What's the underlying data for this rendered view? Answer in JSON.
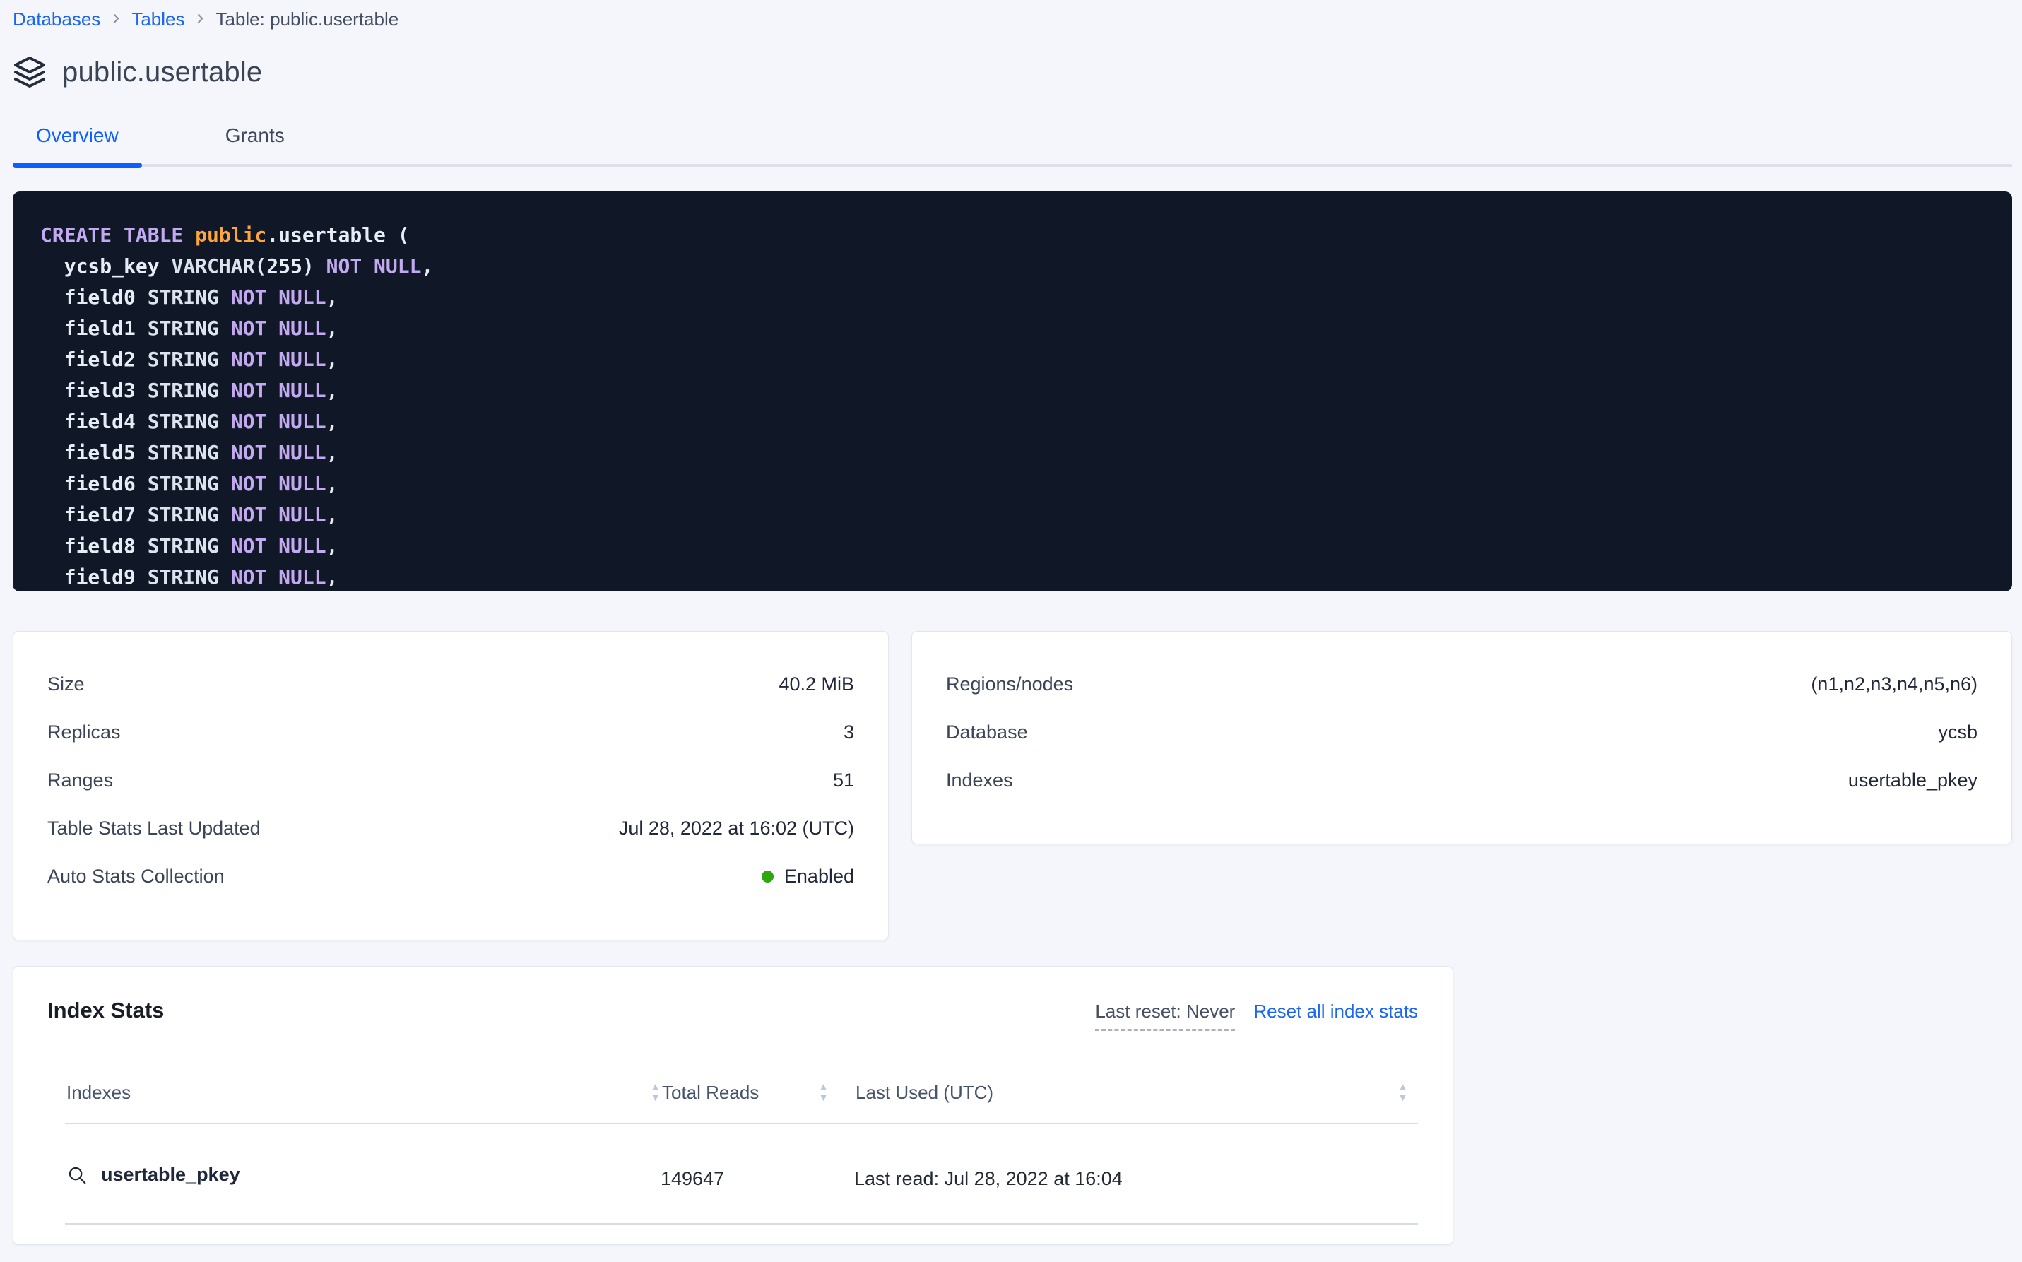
{
  "breadcrumb": {
    "items": [
      {
        "label": "Databases"
      },
      {
        "label": "Tables"
      },
      {
        "label": "Table: public.usertable"
      }
    ]
  },
  "header": {
    "title": "public.usertable"
  },
  "tabs": [
    {
      "label": "Overview",
      "active": true
    },
    {
      "label": "Grants",
      "active": false
    }
  ],
  "sql": {
    "lines": [
      [
        {
          "t": "CREATE TABLE ",
          "c": "kw"
        },
        {
          "t": "public",
          "c": "db"
        },
        {
          "t": ".usertable (",
          "c": "pl"
        }
      ],
      [
        {
          "t": "  ycsb_key ",
          "c": "pl"
        },
        {
          "t": "VARCHAR",
          "c": "ty"
        },
        {
          "t": "(255) ",
          "c": "pl"
        },
        {
          "t": "NOT NULL",
          "c": "kw"
        },
        {
          "t": ",",
          "c": "pl"
        }
      ],
      [
        {
          "t": "  field0 ",
          "c": "pl"
        },
        {
          "t": "STRING ",
          "c": "ty"
        },
        {
          "t": "NOT NULL",
          "c": "kw"
        },
        {
          "t": ",",
          "c": "pl"
        }
      ],
      [
        {
          "t": "  field1 ",
          "c": "pl"
        },
        {
          "t": "STRING ",
          "c": "ty"
        },
        {
          "t": "NOT NULL",
          "c": "kw"
        },
        {
          "t": ",",
          "c": "pl"
        }
      ],
      [
        {
          "t": "  field2 ",
          "c": "pl"
        },
        {
          "t": "STRING ",
          "c": "ty"
        },
        {
          "t": "NOT NULL",
          "c": "kw"
        },
        {
          "t": ",",
          "c": "pl"
        }
      ],
      [
        {
          "t": "  field3 ",
          "c": "pl"
        },
        {
          "t": "STRING ",
          "c": "ty"
        },
        {
          "t": "NOT NULL",
          "c": "kw"
        },
        {
          "t": ",",
          "c": "pl"
        }
      ],
      [
        {
          "t": "  field4 ",
          "c": "pl"
        },
        {
          "t": "STRING ",
          "c": "ty"
        },
        {
          "t": "NOT NULL",
          "c": "kw"
        },
        {
          "t": ",",
          "c": "pl"
        }
      ],
      [
        {
          "t": "  field5 ",
          "c": "pl"
        },
        {
          "t": "STRING ",
          "c": "ty"
        },
        {
          "t": "NOT NULL",
          "c": "kw"
        },
        {
          "t": ",",
          "c": "pl"
        }
      ],
      [
        {
          "t": "  field6 ",
          "c": "pl"
        },
        {
          "t": "STRING ",
          "c": "ty"
        },
        {
          "t": "NOT NULL",
          "c": "kw"
        },
        {
          "t": ",",
          "c": "pl"
        }
      ],
      [
        {
          "t": "  field7 ",
          "c": "pl"
        },
        {
          "t": "STRING ",
          "c": "ty"
        },
        {
          "t": "NOT NULL",
          "c": "kw"
        },
        {
          "t": ",",
          "c": "pl"
        }
      ],
      [
        {
          "t": "  field8 ",
          "c": "pl"
        },
        {
          "t": "STRING ",
          "c": "ty"
        },
        {
          "t": "NOT NULL",
          "c": "kw"
        },
        {
          "t": ",",
          "c": "pl"
        }
      ],
      [
        {
          "t": "  field9 ",
          "c": "pl"
        },
        {
          "t": "STRING ",
          "c": "ty"
        },
        {
          "t": "NOT NULL",
          "c": "kw"
        },
        {
          "t": ",",
          "c": "pl"
        }
      ]
    ]
  },
  "details_card": {
    "rows": [
      {
        "label": "Size",
        "value": "40.2 MiB"
      },
      {
        "label": "Replicas",
        "value": "3"
      },
      {
        "label": "Ranges",
        "value": "51"
      },
      {
        "label": "Table Stats Last Updated",
        "value": "Jul 28, 2022 at 16:02 (UTC)"
      },
      {
        "label": "Auto Stats Collection",
        "value": "Enabled",
        "status": "enabled"
      }
    ]
  },
  "metadata_card": {
    "rows": [
      {
        "label": "Regions/nodes",
        "value": "(n1,n2,n3,n4,n5,n6)"
      },
      {
        "label": "Database",
        "value": "ycsb"
      },
      {
        "label": "Indexes",
        "value": "usertable_pkey"
      }
    ]
  },
  "index_stats": {
    "title": "Index Stats",
    "last_reset": "Last reset: Never",
    "reset_link": "Reset all index stats",
    "columns": [
      "Indexes",
      "Total Reads",
      "Last Used (UTC)"
    ],
    "rows": [
      {
        "index": "usertable_pkey",
        "total_reads": "149647",
        "last_used": "Last read: Jul 28, 2022 at 16:04"
      }
    ]
  },
  "colors": {
    "accent_blue": "#0b5fff",
    "link_blue": "#1b66f2",
    "status_green": "#2fa50f",
    "code_background": "#101827",
    "code_keyword": "#c3aaf0",
    "code_schema": "#ffa43d",
    "code_plain": "#e8ecf4",
    "page_background": "#f4f6fb"
  },
  "icons": {
    "breadcrumb_separator": "›",
    "sort_up": "▲",
    "sort_down": "▼"
  }
}
